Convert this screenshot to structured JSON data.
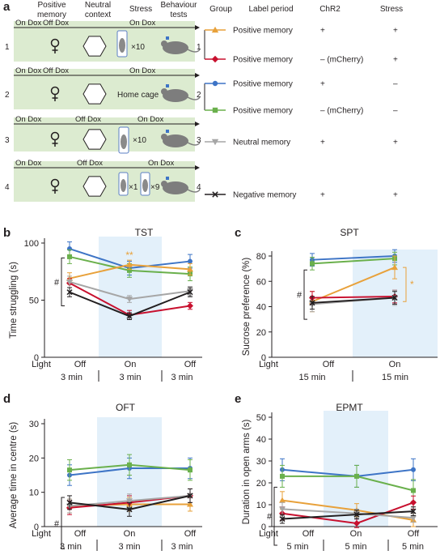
{
  "panel_a": {
    "letter": "a",
    "col_headers": [
      "Positive\nmemory",
      "Neutral\ncontext",
      "Stress",
      "Behaviour\ntests",
      "Group",
      "Label period",
      "ChR2",
      "Stress"
    ],
    "rows": [
      {
        "num": "1",
        "arrows": [
          {
            "label": "On Dox"
          },
          {
            "label": "Off Dox"
          },
          {
            "label": "On Dox"
          }
        ],
        "stress_text": "×10",
        "groups": [
          {
            "group_num": "1",
            "period": "Positive memory",
            "chr2": "+",
            "stress": "+"
          },
          {
            "period": "Positive memory",
            "chr2": "– (mCherry)",
            "stress": "+"
          }
        ]
      },
      {
        "num": "2",
        "arrows": [
          {
            "label": "On Dox"
          },
          {
            "label": "Off Dox"
          },
          {
            "label": "On Dox"
          }
        ],
        "stress_text": "Home cage",
        "groups": [
          {
            "group_num": "2",
            "period": "Positive memory",
            "chr2": "+",
            "stress": "–"
          },
          {
            "period": "Positive memory",
            "chr2": "– (mCherry)",
            "stress": "–"
          }
        ]
      },
      {
        "num": "3",
        "arrows": [
          {
            "label": "On Dox"
          },
          {
            "label": "Off Dox"
          },
          {
            "label": "On Dox"
          }
        ],
        "stress_text": "×10",
        "groups": [
          {
            "group_num": "3",
            "period": "Neutral memory",
            "chr2": "+",
            "stress": "+"
          }
        ]
      },
      {
        "num": "4",
        "arrows": [
          {
            "label": "On Dox"
          },
          {
            "label": "Off Dox"
          },
          {
            "label": "On Dox"
          }
        ],
        "stress_text_a": "×1",
        "stress_text_b": "×9",
        "groups": [
          {
            "group_num": "4",
            "period": "Negative memory",
            "chr2": "+",
            "stress": "+"
          }
        ]
      }
    ]
  },
  "colors": {
    "pos_chr2_stress": "#e8a13a",
    "pos_mch_stress": "#c8102e",
    "pos_chr2_nostress": "#3d74c6",
    "pos_mch_nostress": "#6ab04c",
    "neutral": "#a6a6a6",
    "negative": "#231f20",
    "green_bg": "#dcebd0",
    "blue_bg": "#e3f0fa"
  },
  "chart_data": [
    {
      "panel": "b",
      "type": "line",
      "title": "TST",
      "ylabel": "Time struggling (s)",
      "ylim": [
        0,
        100
      ],
      "yticks": [
        0,
        50,
        100
      ],
      "x_phases": [
        {
          "top": "Light",
          "bottom": ""
        },
        {
          "top": "Off",
          "bottom": "3 min"
        },
        {
          "top": "On",
          "bottom": "3 min"
        },
        {
          "top": "Off",
          "bottom": "3 min"
        }
      ],
      "sig": "#",
      "stars": "**",
      "series": [
        {
          "color": "pos_chr2_nostress",
          "values": [
            95,
            78,
            84
          ],
          "err": [
            6,
            6,
            6
          ]
        },
        {
          "color": "pos_mch_nostress",
          "values": [
            88,
            76,
            73
          ],
          "err": [
            6,
            6,
            6
          ]
        },
        {
          "color": "pos_chr2_stress",
          "values": [
            69,
            81,
            77
          ],
          "err": [
            5,
            4,
            5
          ]
        },
        {
          "color": "pos_mch_stress",
          "values": [
            65,
            37,
            45
          ],
          "err": [
            4,
            4,
            3
          ]
        },
        {
          "color": "neutral",
          "values": [
            66,
            51,
            58
          ],
          "err": [
            5,
            3,
            4
          ]
        },
        {
          "color": "negative",
          "values": [
            57,
            36,
            57
          ],
          "err": [
            4,
            3,
            4
          ]
        }
      ]
    },
    {
      "panel": "c",
      "type": "line",
      "title": "SPT",
      "ylabel": "Sucrose preference (%)",
      "ylim": [
        0,
        80
      ],
      "yticks": [
        0,
        20,
        40,
        60,
        80
      ],
      "x_phases": [
        {
          "top": "Light",
          "bottom": ""
        },
        {
          "top": "Off",
          "bottom": "15 min"
        },
        {
          "top": "On",
          "bottom": "15 min"
        }
      ],
      "sig": "#",
      "stars": "*",
      "series": [
        {
          "color": "pos_chr2_nostress",
          "values": [
            77,
            80
          ],
          "err": [
            5,
            5
          ]
        },
        {
          "color": "pos_mch_nostress",
          "values": [
            74,
            78
          ],
          "err": [
            5,
            5
          ]
        },
        {
          "color": "pos_chr2_stress",
          "values": [
            44,
            71
          ],
          "err": [
            8,
            9
          ]
        },
        {
          "color": "pos_mch_stress",
          "values": [
            47,
            48
          ],
          "err": [
            5,
            5
          ]
        },
        {
          "color": "neutral",
          "values": [
            42,
            47
          ],
          "err": [
            6,
            6
          ]
        },
        {
          "color": "negative",
          "values": [
            43,
            47
          ],
          "err": [
            5,
            5
          ]
        }
      ]
    },
    {
      "panel": "d",
      "type": "line",
      "title": "OFT",
      "ylabel": "Average time in centre (s)",
      "ylim": [
        0,
        30
      ],
      "yticks": [
        0,
        10,
        20,
        30
      ],
      "x_phases": [
        {
          "top": "Light",
          "bottom": ""
        },
        {
          "top": "Off",
          "bottom": "3 min"
        },
        {
          "top": "On",
          "bottom": "3 min"
        },
        {
          "top": "Off",
          "bottom": "3 min"
        }
      ],
      "sig": "#",
      "series": [
        {
          "color": "pos_chr2_nostress",
          "values": [
            15,
            17,
            17
          ],
          "err": [
            3,
            3,
            3
          ]
        },
        {
          "color": "pos_mch_nostress",
          "values": [
            16.5,
            18,
            16.5
          ],
          "err": [
            3,
            3,
            3
          ]
        },
        {
          "color": "pos_chr2_stress",
          "values": [
            6,
            6.5,
            6.5
          ],
          "err": [
            2,
            2,
            2
          ]
        },
        {
          "color": "pos_mch_stress",
          "values": [
            5.5,
            7,
            9
          ],
          "err": [
            2,
            2,
            2
          ]
        },
        {
          "color": "neutral",
          "values": [
            6,
            7.5,
            9
          ],
          "err": [
            2,
            2,
            2
          ]
        },
        {
          "color": "negative",
          "values": [
            7,
            5,
            9
          ],
          "err": [
            2,
            2,
            2
          ]
        }
      ]
    },
    {
      "panel": "e",
      "type": "line",
      "title": "EPMT",
      "ylabel": "Duration in open arms (s)",
      "ylim": [
        0,
        50
      ],
      "yticks": [
        0,
        10,
        20,
        30,
        40,
        50
      ],
      "x_phases": [
        {
          "top": "Light",
          "bottom": ""
        },
        {
          "top": "Off",
          "bottom": "5 min"
        },
        {
          "top": "On",
          "bottom": "5 min"
        },
        {
          "top": "Off",
          "bottom": "5 min"
        }
      ],
      "sig": "#",
      "series": [
        {
          "color": "pos_chr2_nostress",
          "values": [
            26,
            23,
            26
          ],
          "err": [
            5,
            5,
            5
          ]
        },
        {
          "color": "pos_mch_nostress",
          "values": [
            23,
            23,
            16.5
          ],
          "err": [
            5,
            5,
            5
          ]
        },
        {
          "color": "pos_chr2_stress",
          "values": [
            12,
            7.5,
            3
          ],
          "err": [
            4,
            3,
            3
          ]
        },
        {
          "color": "pos_mch_stress",
          "values": [
            6,
            1.5,
            11
          ],
          "err": [
            3,
            2,
            3
          ]
        },
        {
          "color": "neutral",
          "values": [
            8,
            6,
            4
          ],
          "err": [
            3,
            2,
            2
          ]
        },
        {
          "color": "negative",
          "values": [
            3.5,
            5.5,
            7
          ],
          "err": [
            2,
            2,
            2
          ]
        }
      ]
    }
  ]
}
